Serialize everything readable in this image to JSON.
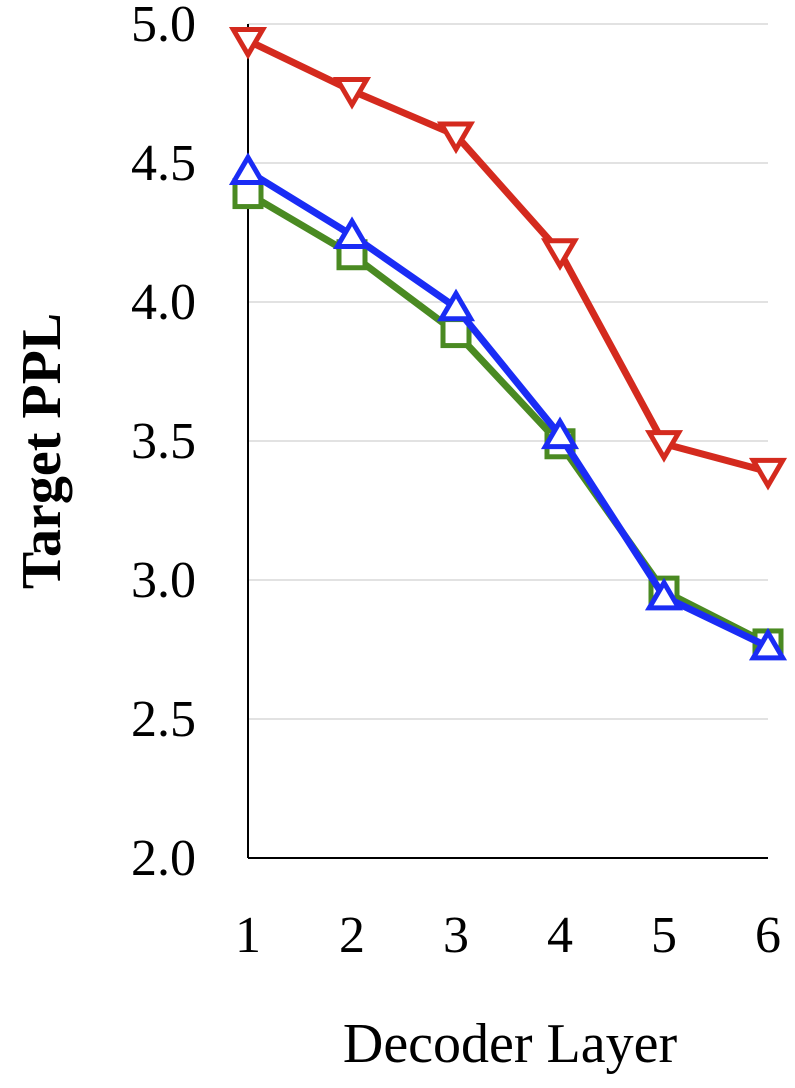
{
  "chart_data": {
    "type": "line",
    "title": "",
    "xlabel": "Decoder Layer",
    "ylabel": "Target PPL",
    "x": [
      1,
      2,
      3,
      4,
      5,
      6
    ],
    "x_tick_labels": [
      "1",
      "2",
      "3",
      "4",
      "5",
      "6"
    ],
    "y_tick_labels": [
      "2.0",
      "2.5",
      "3.0",
      "3.5",
      "4.0",
      "4.5",
      "5.0"
    ],
    "y_ticks": [
      2.0,
      2.5,
      3.0,
      3.5,
      4.0,
      4.5,
      5.0
    ],
    "ylim": [
      2.0,
      5.0
    ],
    "grid": true,
    "legend": "none",
    "series": [
      {
        "marker": "triangle-down",
        "color": "#d42a1e",
        "values": [
          4.94,
          4.76,
          4.6,
          4.18,
          3.49,
          3.39
        ]
      },
      {
        "marker": "square",
        "color": "#4a8a22",
        "values": [
          4.39,
          4.17,
          3.89,
          3.49,
          2.96,
          2.77
        ]
      },
      {
        "marker": "triangle-up",
        "color": "#1a2cf5",
        "values": [
          4.47,
          4.24,
          3.98,
          3.52,
          2.94,
          2.76
        ]
      }
    ]
  }
}
